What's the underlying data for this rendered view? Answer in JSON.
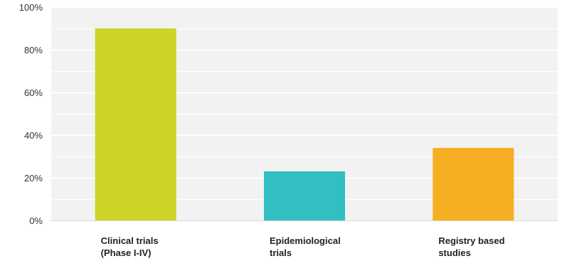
{
  "chart_data": {
    "type": "bar",
    "categories": [
      [
        "Clinical trials",
        "(Phase I-IV)"
      ],
      [
        "Epidemiological",
        "trials"
      ],
      [
        "Registry based",
        "studies"
      ]
    ],
    "values": [
      90,
      23,
      34
    ],
    "bar_colors": [
      "#cdd427",
      "#31bfc1",
      "#f6ae22"
    ],
    "ylim": [
      0,
      100
    ],
    "y_ticks": [
      0,
      20,
      40,
      60,
      80,
      100
    ],
    "y_tick_labels": [
      "0%",
      "20%",
      "40%",
      "60%",
      "80%",
      "100%"
    ],
    "minor_gridlines": [
      10,
      30,
      50,
      70,
      90
    ],
    "grid": true,
    "plot_background": "#f2f2f2",
    "title": "",
    "xlabel": "",
    "ylabel": ""
  }
}
